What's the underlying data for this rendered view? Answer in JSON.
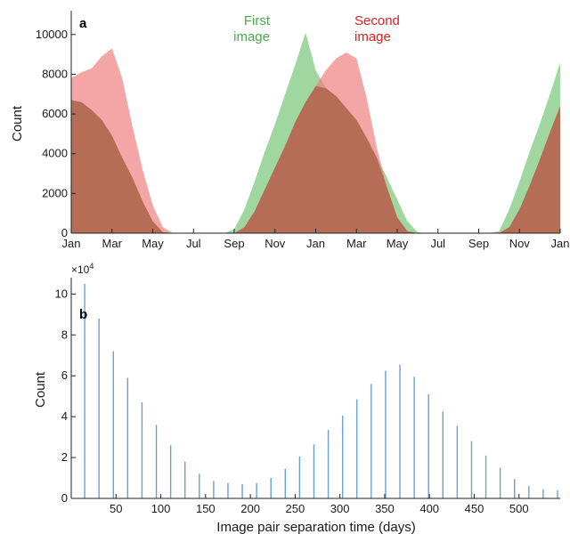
{
  "chart_data": [
    {
      "panel_label": "a",
      "type": "area",
      "ylabel": "Count",
      "xlabel": "",
      "x_ticks": [
        "Jan",
        "Mar",
        "May",
        "Jul",
        "Sep",
        "Nov",
        "Jan",
        "Mar",
        "May",
        "Jul",
        "Sep",
        "Nov",
        "Jan"
      ],
      "xlim": [
        0,
        24
      ],
      "ylim": [
        0,
        11200
      ],
      "yticks": [
        0,
        2000,
        4000,
        6000,
        8000,
        10000
      ],
      "series": [
        {
          "name": "First\nimage",
          "color": "#8fd08f",
          "x": [
            0,
            0.5,
            1,
            1.5,
            2,
            2.5,
            3,
            3.5,
            4,
            4.5,
            5,
            5.5,
            6,
            6.5,
            7,
            7.5,
            8,
            8.5,
            9,
            9.5,
            10,
            10.5,
            11,
            11.5,
            12,
            12.5,
            13,
            13.5,
            14,
            14.5,
            15,
            15.5,
            16,
            16.5,
            17,
            17.5,
            18,
            18.5,
            19,
            19.5,
            20,
            20.5,
            21,
            21.5,
            22,
            22.5,
            23,
            23.5,
            24
          ],
          "values": [
            6700,
            6600,
            6200,
            5700,
            4900,
            3800,
            2800,
            1600,
            600,
            50,
            0,
            0,
            0,
            0,
            0,
            0,
            200,
            1200,
            2600,
            4100,
            5500,
            7000,
            8500,
            10100,
            8200,
            7300,
            6900,
            6300,
            5700,
            4800,
            3800,
            2800,
            1700,
            600,
            50,
            0,
            0,
            0,
            0,
            0,
            0,
            0,
            100,
            1200,
            2600,
            4100,
            5500,
            7000,
            8600
          ]
        },
        {
          "name": "Second\nimage",
          "color": "#ef7f7f",
          "x": [
            0,
            0.5,
            1,
            1.5,
            2,
            2.5,
            3,
            3.5,
            4,
            4.5,
            5,
            5.5,
            6,
            6.5,
            7,
            7.5,
            8,
            8.5,
            9,
            9.5,
            10,
            10.5,
            11,
            11.5,
            12,
            12.5,
            13,
            13.5,
            14,
            14.5,
            15,
            15.5,
            16,
            16.5,
            17,
            17.5,
            18,
            18.5,
            19,
            19.5,
            20,
            20.5,
            21,
            21.5,
            22,
            22.5,
            23,
            23.5,
            24
          ],
          "values": [
            7800,
            8100,
            8300,
            8900,
            9300,
            7800,
            5400,
            3200,
            1400,
            300,
            0,
            0,
            0,
            0,
            0,
            0,
            0,
            300,
            1100,
            2200,
            3300,
            4400,
            5600,
            6600,
            7400,
            8200,
            8800,
            9100,
            8800,
            6800,
            4300,
            2300,
            800,
            100,
            0,
            0,
            0,
            0,
            0,
            0,
            0,
            0,
            0,
            300,
            1200,
            2400,
            3700,
            5100,
            6400
          ]
        }
      ]
    },
    {
      "panel_label": "b",
      "type": "bar",
      "xlabel": "Image pair separation time (days)",
      "ylabel": "Count",
      "exponent": "×10",
      "exponent_power": "4",
      "xlim": [
        0,
        546
      ],
      "ylim": [
        0,
        10.8
      ],
      "xticks": [
        50,
        100,
        150,
        200,
        250,
        300,
        350,
        400,
        450,
        500
      ],
      "yticks": [
        0,
        2,
        4,
        6,
        8,
        10
      ],
      "x": [
        15,
        31,
        47,
        63,
        79,
        95,
        111,
        127,
        143,
        159,
        175,
        191,
        207,
        223,
        239,
        255,
        271,
        287,
        303,
        319,
        335,
        351,
        367,
        383,
        399,
        415,
        431,
        447,
        463,
        479,
        495,
        511,
        527,
        543
      ],
      "values": [
        10.5,
        8.8,
        7.2,
        5.9,
        4.7,
        3.6,
        2.6,
        1.8,
        1.2,
        0.85,
        0.75,
        0.7,
        0.75,
        1.0,
        1.45,
        2.05,
        2.65,
        3.35,
        4.05,
        4.85,
        5.6,
        6.25,
        6.55,
        5.95,
        5.1,
        4.25,
        3.55,
        2.8,
        2.1,
        1.5,
        0.95,
        0.6,
        0.45,
        0.4
      ],
      "color": "#6a9fd4"
    }
  ]
}
